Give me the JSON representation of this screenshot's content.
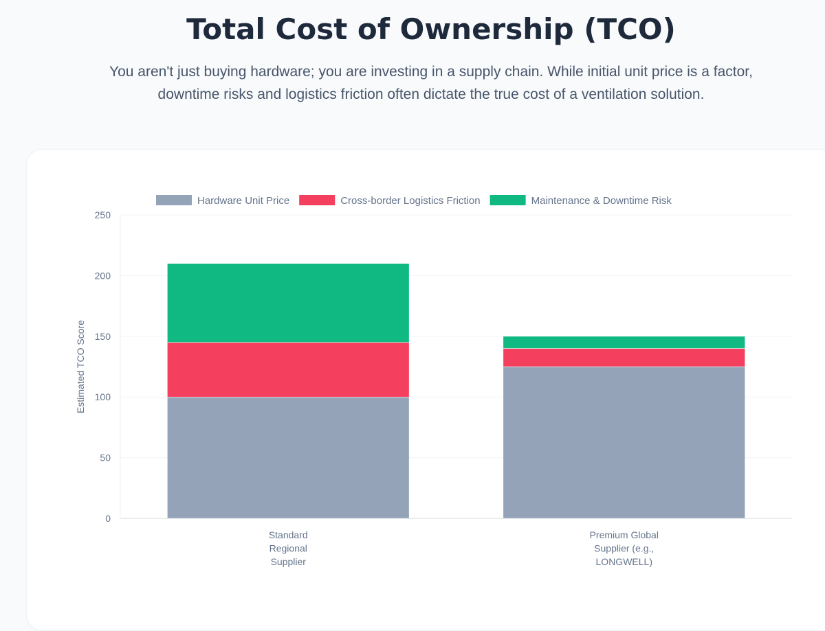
{
  "header": {
    "title": "Total Cost of Ownership (TCO)",
    "subtitle": "You aren't just buying hardware; you are investing in a supply chain. While initial unit price is a factor, downtime risks and logistics friction often dictate the true cost of a ventilation solution."
  },
  "chart_data": {
    "type": "bar",
    "stacked": true,
    "title": "",
    "xlabel": "",
    "ylabel": "Estimated TCO Score",
    "ylim": [
      0,
      250
    ],
    "yticks": [
      0,
      50,
      100,
      150,
      200,
      250
    ],
    "grid": true,
    "legend_position": "top",
    "categories": [
      [
        "Standard",
        "Regional",
        "Supplier"
      ],
      [
        "Premium Global",
        "Supplier (e.g.,",
        "LONGWELL)"
      ]
    ],
    "series": [
      {
        "name": "Hardware Unit Price",
        "values": [
          100,
          125
        ],
        "color": "#94a3b8"
      },
      {
        "name": "Cross-border Logistics Friction",
        "values": [
          45,
          15
        ],
        "color": "#f43f5e"
      },
      {
        "name": "Maintenance & Downtime Risk",
        "values": [
          65,
          10
        ],
        "color": "#10b981"
      }
    ]
  }
}
